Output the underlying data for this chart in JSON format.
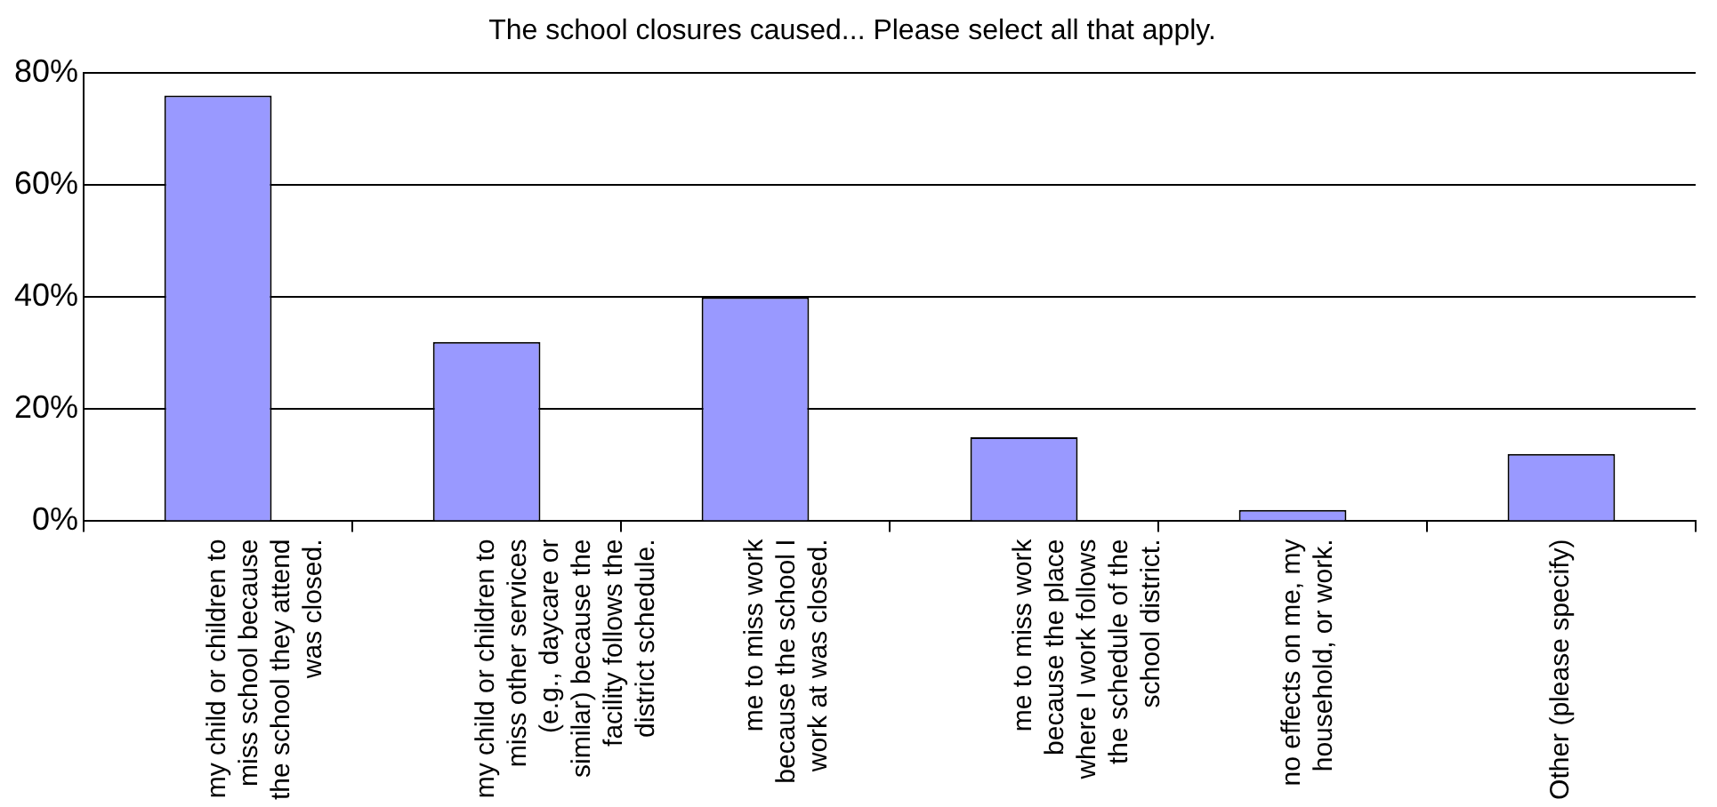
{
  "chart_data": {
    "type": "bar",
    "title": "The school closures caused... Please select all that apply.",
    "categories": [
      "my child or children to miss school because the school they attend was closed.",
      "my child or children to miss other services (e.g., daycare or similar) because the facility follows the district schedule.",
      "me to miss work because the school I work at was closed.",
      "me to miss work because the place where I work follows the schedule of the school district.",
      "no effects on me, my household, or work.",
      "Other (please specify)"
    ],
    "values": [
      0.76,
      0.32,
      0.4,
      0.15,
      0.02,
      0.12
    ],
    "color": "#9999ff",
    "ylim": [
      0,
      0.8
    ],
    "yticks": [
      {
        "value": 0,
        "label": "0%"
      },
      {
        "value": 0.2,
        "label": "20%"
      },
      {
        "value": 0.4,
        "label": "40%"
      },
      {
        "value": 0.6,
        "label": "60%"
      },
      {
        "value": 0.8,
        "label": "80%"
      }
    ],
    "grid": "y"
  }
}
